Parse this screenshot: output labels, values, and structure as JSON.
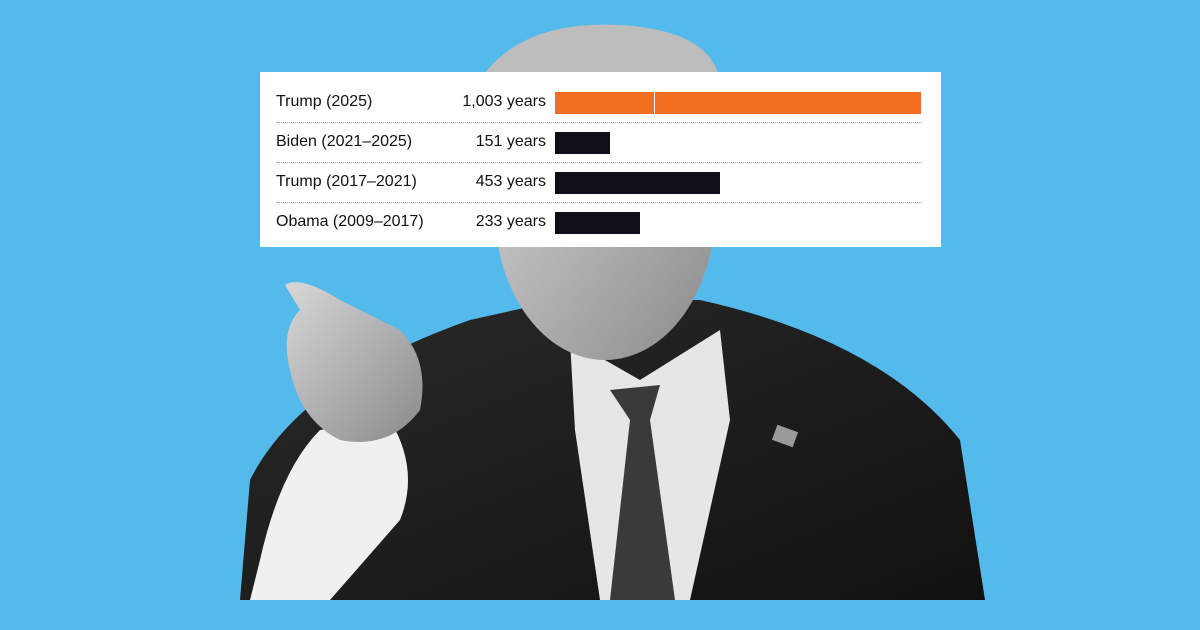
{
  "chart_data": {
    "type": "bar",
    "orientation": "horizontal",
    "title": "",
    "xlabel": "",
    "ylabel": "",
    "categories": [
      "Trump (2025)",
      "Biden (2021–2025)",
      "Trump (2017–2021)",
      "Obama (2009–2017)"
    ],
    "values": [
      1003,
      151,
      453,
      233
    ],
    "value_labels": [
      "1,003 years",
      "151 years",
      "453 years",
      "233 years"
    ],
    "xlim": [
      0,
      1003
    ],
    "highlight_index": 0,
    "colors": {
      "highlight": "#f26f21",
      "default": "#0f0f1a"
    }
  },
  "background_color": "#54baec"
}
